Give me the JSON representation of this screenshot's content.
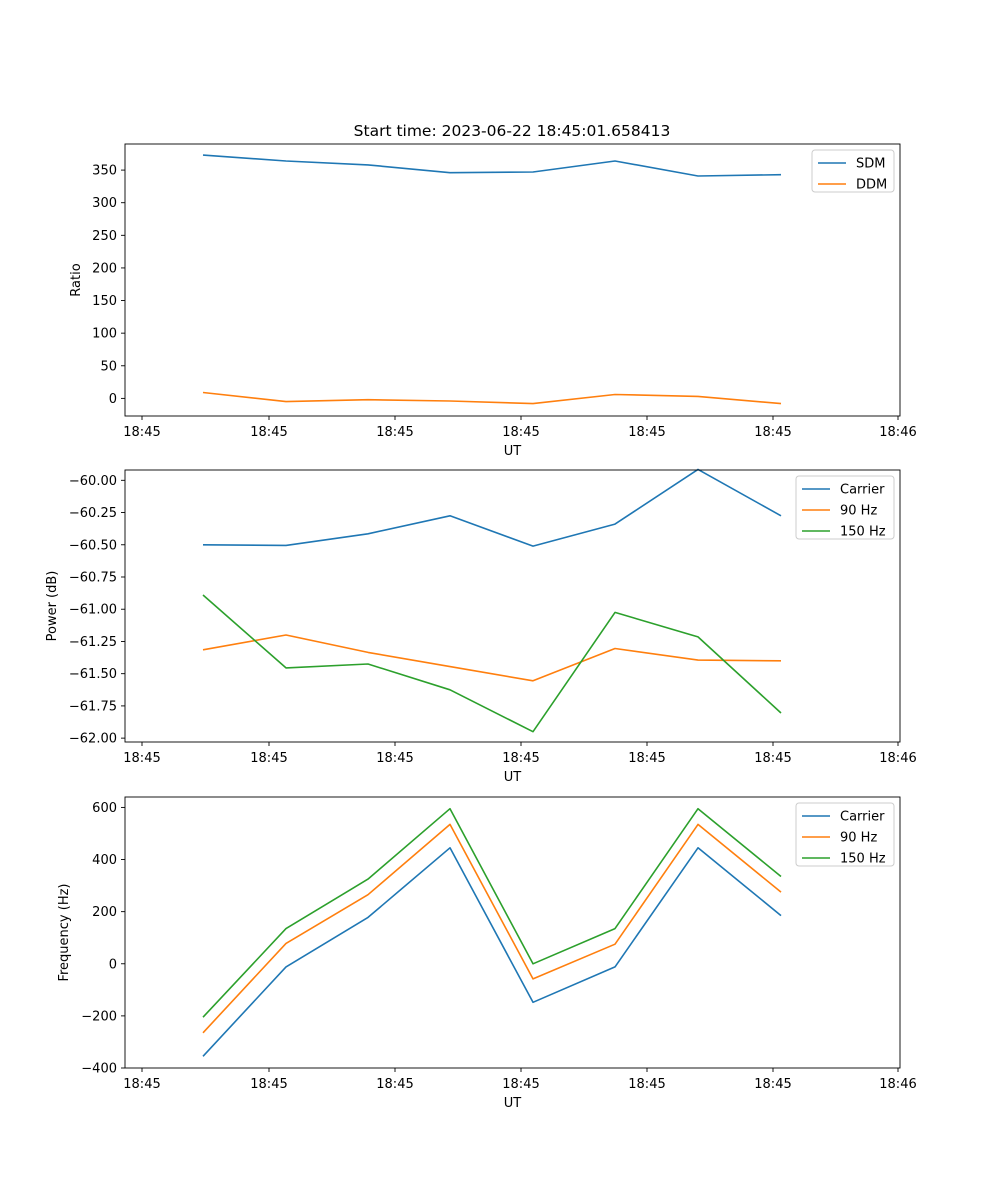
{
  "title": "Start time: 2023-06-22 18:45:01.658413",
  "chart_data": [
    {
      "type": "line",
      "title": "Start time: 2023-06-22 18:45:01.658413",
      "xlabel": "UT",
      "ylabel": "Ratio",
      "xticks": [
        "18:45",
        "18:45",
        "18:45",
        "18:45",
        "18:45",
        "18:45",
        "18:46"
      ],
      "ylim": [
        -27,
        390
      ],
      "yticks": [
        0,
        50,
        100,
        150,
        200,
        250,
        300,
        350
      ],
      "ytick_labels": [
        "0",
        "50",
        "100",
        "150",
        "200",
        "250",
        "300",
        "350"
      ],
      "legend_position": "top-right",
      "series": [
        {
          "name": "SDM",
          "color": "#1f77b4",
          "values": [
            373,
            364,
            358,
            346,
            347,
            364,
            341,
            343
          ]
        },
        {
          "name": "DDM",
          "color": "#ff7f0e",
          "values": [
            9,
            -5,
            -2,
            -4,
            -8,
            6,
            3,
            -8
          ]
        }
      ]
    },
    {
      "type": "line",
      "title": "",
      "xlabel": "UT",
      "ylabel": "Power (dB)",
      "xticks": [
        "18:45",
        "18:45",
        "18:45",
        "18:45",
        "18:45",
        "18:45",
        "18:46"
      ],
      "ylim": [
        -62.03,
        -59.92
      ],
      "yticks": [
        -60.0,
        -60.25,
        -60.5,
        -60.75,
        -61.0,
        -61.25,
        -61.5,
        -61.75,
        -62.0
      ],
      "ytick_labels": [
        "−60.00",
        "−60.25",
        "−60.50",
        "−60.75",
        "−61.00",
        "−61.25",
        "−61.50",
        "−61.75",
        "−62.00"
      ],
      "legend_position": "top-right",
      "series": [
        {
          "name": "Carrier",
          "color": "#1f77b4",
          "values": [
            -60.5,
            -60.505,
            -60.415,
            -60.275,
            -60.51,
            -60.34,
            -59.915,
            -60.275
          ]
        },
        {
          "name": "90 Hz",
          "color": "#ff7f0e",
          "values": [
            -61.315,
            -61.2,
            -61.335,
            -61.445,
            -61.555,
            -61.305,
            -61.395,
            -61.4
          ]
        },
        {
          "name": "150 Hz",
          "color": "#2ca02c",
          "values": [
            -60.89,
            -61.455,
            -61.425,
            -61.625,
            -61.95,
            -61.025,
            -61.215,
            -61.805
          ]
        }
      ]
    },
    {
      "type": "line",
      "title": "",
      "xlabel": "UT",
      "ylabel": "Frequency (Hz)",
      "xticks": [
        "18:45",
        "18:45",
        "18:45",
        "18:45",
        "18:45",
        "18:45",
        "18:46"
      ],
      "ylim": [
        -400,
        640
      ],
      "yticks": [
        -400,
        -200,
        0,
        200,
        400,
        600
      ],
      "ytick_labels": [
        "−400",
        "−200",
        "0",
        "200",
        "400",
        "600"
      ],
      "legend_position": "top-right",
      "series": [
        {
          "name": "Carrier",
          "color": "#1f77b4",
          "values": [
            -355,
            -12,
            178,
            445,
            -148,
            -12,
            445,
            185
          ]
        },
        {
          "name": "90 Hz",
          "color": "#ff7f0e",
          "values": [
            -265,
            78,
            265,
            535,
            -58,
            75,
            535,
            275
          ]
        },
        {
          "name": "150 Hz",
          "color": "#2ca02c",
          "values": [
            -205,
            135,
            325,
            595,
            0,
            135,
            595,
            335
          ]
        }
      ]
    }
  ]
}
